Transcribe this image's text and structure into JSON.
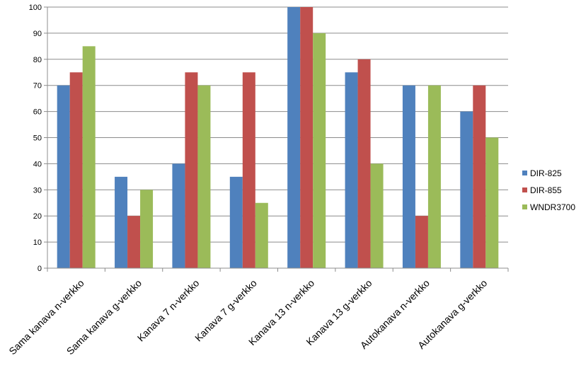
{
  "chart_data": {
    "type": "bar",
    "title": "",
    "xlabel": "",
    "ylabel": "",
    "ylim": [
      0,
      100
    ],
    "yticks": [
      0,
      10,
      20,
      30,
      40,
      50,
      60,
      70,
      80,
      90,
      100
    ],
    "grid": true,
    "legend_position": "right",
    "categories": [
      "Sama kanava n-verkko",
      "Sama kanava g-verkko",
      "Kanava 7 n-verkko",
      "Kanava 7 g-verkko",
      "Kanava 13 n-verkko",
      "Kanava 13 g-verkko",
      "Autokanava n-verkko",
      "Autokanava g-verkko"
    ],
    "series": [
      {
        "name": "DIR-825",
        "color": "#4F81BD",
        "values": [
          70,
          35,
          40,
          35,
          100,
          75,
          70,
          60
        ]
      },
      {
        "name": "DIR-855",
        "color": "#C0504D",
        "values": [
          75,
          20,
          75,
          75,
          100,
          80,
          20,
          70
        ]
      },
      {
        "name": "WNDR3700",
        "color": "#9BBB59",
        "values": [
          85,
          30,
          70,
          25,
          90,
          40,
          70,
          50
        ]
      }
    ]
  }
}
